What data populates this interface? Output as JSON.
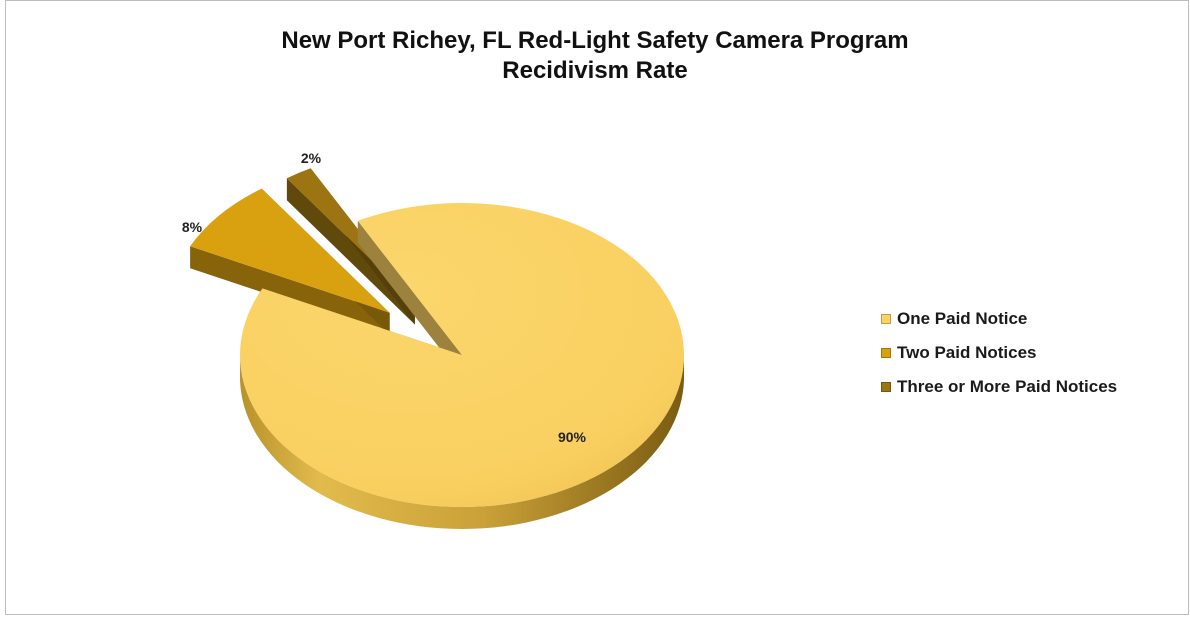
{
  "chart_data": {
    "type": "pie",
    "title": [
      "New Port Richey, FL Red-Light Safety Camera Program",
      "Recidivism Rate"
    ],
    "categories": [
      "One Paid Notice",
      "Two Paid Notices",
      "Three or More Paid Notices"
    ],
    "values": [
      90,
      8,
      2
    ],
    "labels": [
      "90%",
      "8%",
      "2%"
    ],
    "colors": [
      "#fcd262",
      "#d9a110",
      "#9c7412"
    ],
    "legend_position": "right",
    "exploded": [
      "Two Paid Notices",
      "Three or More Paid Notices"
    ],
    "style": "3d"
  }
}
